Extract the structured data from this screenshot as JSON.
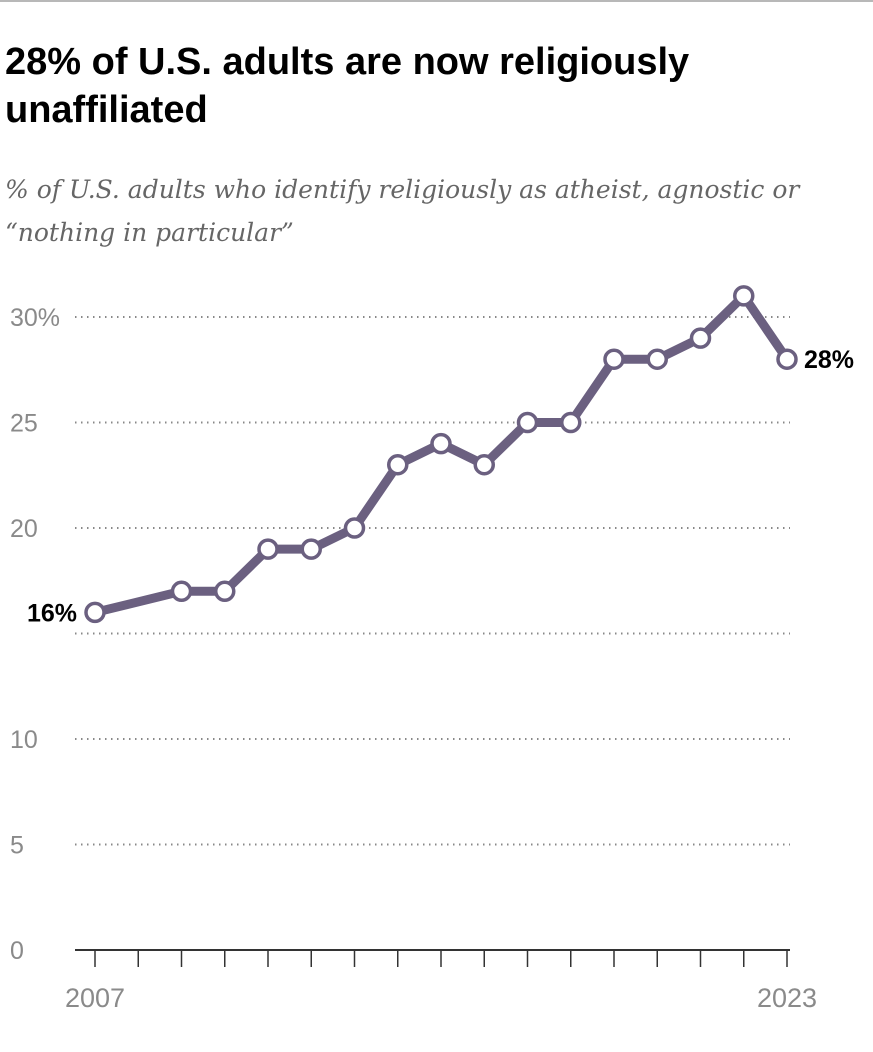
{
  "title": "28% of U.S. adults are now religiously unaffiliated",
  "subtitle": "% of U.S. adults who identify religiously as atheist, agnostic or “nothing in particular”",
  "chart_data": {
    "type": "line",
    "title": "28% of U.S. adults are now religiously unaffiliated",
    "subtitle": "% of U.S. adults who identify religiously as atheist, agnostic or “nothing in particular”",
    "x": [
      2007,
      2009,
      2010,
      2011,
      2012,
      2013,
      2014,
      2015,
      2016,
      2017,
      2018,
      2019,
      2020,
      2021,
      2022,
      2023
    ],
    "series": [
      {
        "values": [
          16,
          17,
          17,
          19,
          19,
          20,
          23,
          24,
          23,
          25,
          25,
          28,
          28,
          29,
          31,
          28
        ],
        "color": "#6b6080"
      }
    ],
    "xlim": [
      2007,
      2023
    ],
    "ylim": [
      0,
      30
    ],
    "yticks": [
      0,
      5,
      10,
      15,
      20,
      25,
      30
    ],
    "ytick_labels": [
      "0",
      "5",
      "10",
      "",
      "20",
      "25",
      "30%"
    ],
    "xtick_labels": [
      {
        "x": 2007,
        "label": "2007"
      },
      {
        "x": 2023,
        "label": "2023"
      }
    ],
    "annotations": [
      {
        "x": 2007,
        "label": "16%"
      },
      {
        "x": 2023,
        "label": "28%"
      }
    ],
    "grid": true,
    "xlabel": "",
    "ylabel": ""
  }
}
